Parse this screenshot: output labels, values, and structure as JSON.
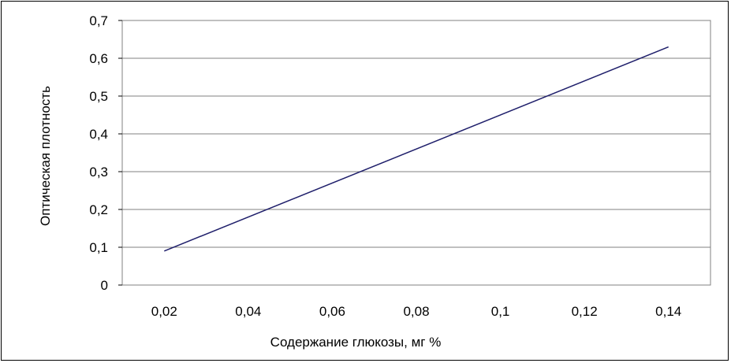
{
  "chart_data": {
    "type": "line",
    "title": "",
    "xlabel": "Содержание глюкозы, мг %",
    "ylabel": "Оптическая плотность",
    "x_ticks": [
      "0,02",
      "0,04",
      "0,06",
      "0,08",
      "0,1",
      "0,12",
      "0,14"
    ],
    "y_ticks": [
      "0",
      "0,1",
      "0,2",
      "0,3",
      "0,4",
      "0,5",
      "0,6",
      "0,7"
    ],
    "ylim": [
      0,
      0.7
    ],
    "grid": "horizontal",
    "legend": "none",
    "series": [
      {
        "color": "#1f1f6b",
        "points": [
          {
            "x": 0.02,
            "y": 0.09
          },
          {
            "x": 0.14,
            "y": 0.63
          }
        ]
      }
    ]
  }
}
